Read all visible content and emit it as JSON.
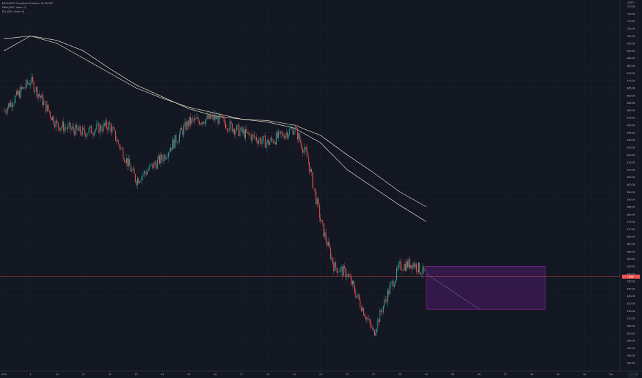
{
  "legend": {
    "symbol_line": "BCHUSDT Perpetual Contract, 15, BYBIT",
    "ema_line": "EMA (200, close, 0)",
    "ma_line": "MA (200, close, 0)"
  },
  "price_axis": {
    "currency": "USDT",
    "ticks": [
      "720.00",
      "715.00",
      "710.00",
      "705.00",
      "700.00",
      "695.00",
      "690.00",
      "685.00",
      "680.00",
      "675.00",
      "670.00",
      "665.00",
      "660.00",
      "655.00",
      "650.00",
      "645.00",
      "640.00",
      "635.00",
      "630.00",
      "625.00",
      "620.00",
      "615.00",
      "610.00",
      "605.00",
      "600.00",
      "595.00",
      "590.00",
      "585.00",
      "580.00",
      "575.00",
      "570.00",
      "565.00",
      "560.00",
      "555.00",
      "550.00",
      "545.00",
      "540.00",
      "535.00",
      "530.00",
      "525.00",
      "520.00",
      "515.00",
      "510.00",
      "505.00",
      "500.00",
      "495.00",
      "490.00",
      "485.00",
      "480.00"
    ],
    "current_price_label": "538"
  },
  "time_axis": {
    "ticks": [
      "0:00",
      "9",
      "10",
      "11",
      "12",
      "13",
      "14",
      "15",
      "16",
      "17",
      "18",
      "19",
      "20",
      "21",
      "22",
      "23",
      "24",
      "25",
      "26",
      "27",
      "28",
      "29",
      "30",
      "Oct",
      "2"
    ]
  },
  "colors": {
    "background": "#131722",
    "up": "#26a69a",
    "down": "#ef5350",
    "ema": "#e2d8c5",
    "ma": "#f0e6d0",
    "forecast_box": "#7b1fa2",
    "current_price": "#ef5350"
  },
  "chart_data": {
    "type": "candlestick",
    "title": "BCHUSDT Perpetual Contract, 15, BYBIT",
    "y_range": [
      478,
      722
    ],
    "key_prices": [
      {
        "x": "8 0:00",
        "price": 650
      },
      {
        "x": "9",
        "price": 670
      },
      {
        "x": "10",
        "price": 640
      },
      {
        "x": "11",
        "price": 635
      },
      {
        "x": "12",
        "price": 640
      },
      {
        "x": "13",
        "price": 603
      },
      {
        "x": "14",
        "price": 618
      },
      {
        "x": "15",
        "price": 642
      },
      {
        "x": "16",
        "price": 645
      },
      {
        "x": "17",
        "price": 635
      },
      {
        "x": "18",
        "price": 628
      },
      {
        "x": "19",
        "price": 638
      },
      {
        "x": "19.5",
        "price": 618
      },
      {
        "x": "20",
        "price": 575
      },
      {
        "x": "20.5",
        "price": 545
      },
      {
        "x": "21",
        "price": 540
      },
      {
        "x": "22",
        "price": 500
      },
      {
        "x": "22.5",
        "price": 525
      },
      {
        "x": "23",
        "price": 545
      },
      {
        "x": "23.5",
        "price": 547
      },
      {
        "x": "24",
        "price": 539
      }
    ],
    "series": [
      {
        "name": "EMA (200, close, 0)",
        "x": [
          "8",
          "9",
          "10",
          "11",
          "12",
          "13",
          "14",
          "15",
          "16",
          "17",
          "18",
          "19",
          "20",
          "21",
          "22",
          "23",
          "24"
        ],
        "values": [
          690,
          700,
          695,
          685,
          675,
          665,
          658,
          652,
          648,
          644,
          643,
          640,
          633,
          620,
          608,
          595,
          585
        ]
      },
      {
        "name": "MA (200, close, 0)",
        "x": [
          "8",
          "9",
          "10",
          "11",
          "12",
          "13",
          "14",
          "15",
          "16",
          "17",
          "18",
          "19",
          "20",
          "21",
          "22",
          "23",
          "24"
        ],
        "values": [
          698,
          700,
          697,
          690,
          678,
          667,
          659,
          651,
          646,
          644,
          642,
          638,
          628,
          610,
          598,
          586,
          575
        ]
      }
    ],
    "forecast_box": {
      "x_start": "24",
      "x_end": "28.5",
      "price_top": 545,
      "price_bottom": 516,
      "arrow_from": 540,
      "arrow_to": 516
    },
    "current_price": 538
  }
}
